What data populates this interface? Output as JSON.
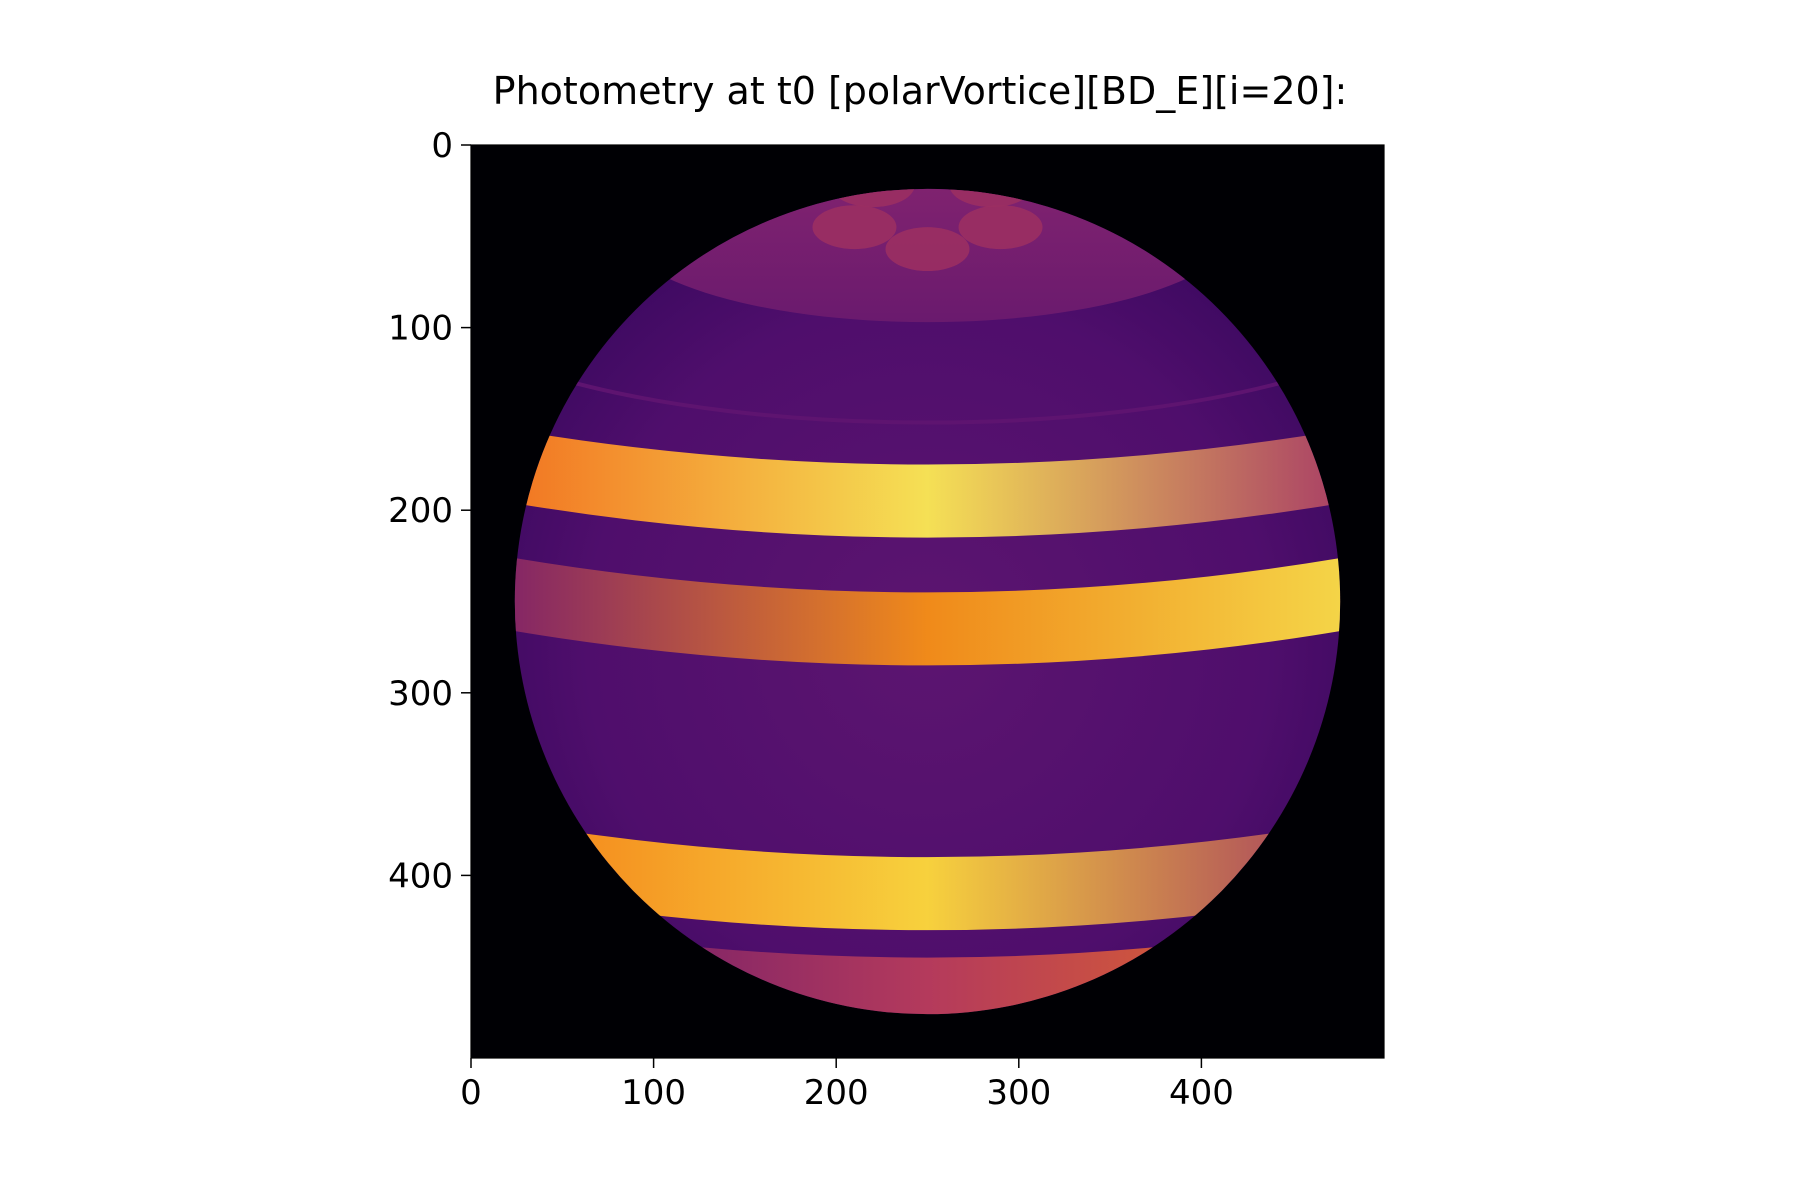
{
  "chart_data": {
    "type": "heatmap",
    "title": "Photometry at t0 [polarVortice][BD_E][i=20]:",
    "xlabel": "",
    "ylabel": "",
    "colormap": "inferno",
    "xlim": [
      0,
      500
    ],
    "ylim": [
      500,
      0
    ],
    "x_ticks": [
      0,
      100,
      200,
      300,
      400
    ],
    "y_ticks": [
      0,
      100,
      200,
      300,
      400
    ],
    "x_tick_labels": [
      "0",
      "100",
      "200",
      "300",
      "400"
    ],
    "y_tick_labels": [
      "0",
      "100",
      "200",
      "300",
      "400"
    ],
    "grid": false,
    "image": {
      "description_of_content": "",
      "background_color": "#000004",
      "sphere": {
        "center": [
          250,
          250
        ],
        "radius": 226
      },
      "base_color": "#4a0c6b",
      "bands": [
        {
          "y": 170,
          "color_left": "#f26b1d",
          "color_center": "#f5e055",
          "color_right": "#a23067"
        },
        {
          "y": 240,
          "color_left": "#7a1c6d",
          "color_center": "#f08a1a",
          "color_right": "#f5dc4c"
        },
        {
          "y": 385,
          "color_left": "#f47a16",
          "color_center": "#f7d13d",
          "color_right": "#9c2e63"
        },
        {
          "y": 440,
          "color_left": "#5a1470",
          "color_center": "#b43a5c",
          "color_right": "#e8701e"
        }
      ],
      "polar_cap": {
        "y": 52,
        "color": "#7b2170"
      },
      "vortices": [
        {
          "x": 210,
          "y": 45
        },
        {
          "x": 250,
          "y": 57
        },
        {
          "x": 290,
          "y": 45
        },
        {
          "x": 220,
          "y": 22
        },
        {
          "x": 285,
          "y": 22
        }
      ]
    }
  }
}
